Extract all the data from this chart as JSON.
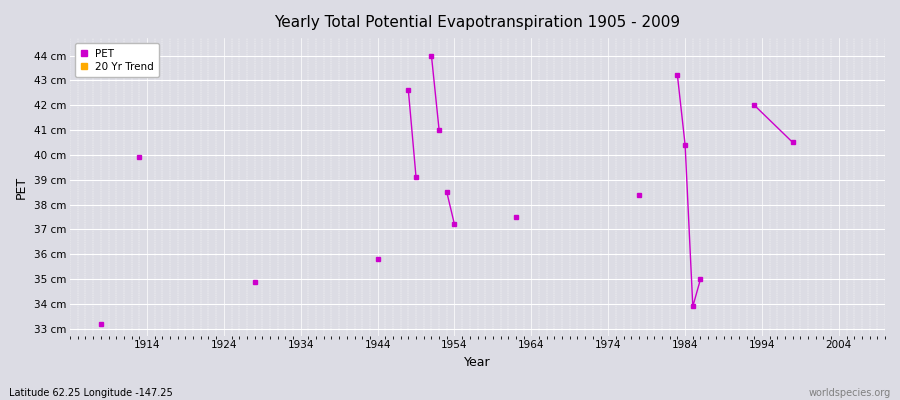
{
  "title": "Yearly Total Potential Evapotranspiration 1905 - 2009",
  "xlabel": "Year",
  "ylabel": "PET",
  "subtitle": "Latitude 62.25 Longitude -147.25",
  "watermark": "worldspecies.org",
  "xlim": [
    1904,
    2010
  ],
  "ylim": [
    32.7,
    44.7
  ],
  "ytick_vals": [
    33,
    34,
    35,
    36,
    37,
    38,
    39,
    40,
    41,
    42,
    43,
    44
  ],
  "ytick_labels": [
    "33 cm",
    "34 cm",
    "35 cm",
    "36 cm",
    "37 cm",
    "38 cm",
    "39 cm",
    "40 cm",
    "41 cm",
    "42 cm",
    "43 cm",
    "44 cm"
  ],
  "xticks": [
    1914,
    1924,
    1934,
    1944,
    1954,
    1964,
    1974,
    1984,
    1994,
    2004
  ],
  "pet_color": "#cc00cc",
  "trend_color": "#ffaa00",
  "background_color": "#dcdce4",
  "plot_background": "#dcdce4",
  "grid_color": "#ffffff",
  "isolated_points": [
    [
      1908,
      33.2
    ],
    [
      1913,
      39.9
    ],
    [
      1928,
      34.9
    ],
    [
      1944,
      35.8
    ],
    [
      1962,
      37.5
    ],
    [
      1978,
      38.4
    ]
  ],
  "connected_segments": [
    [
      [
        1948,
        42.6
      ],
      [
        1949,
        39.1
      ]
    ],
    [
      [
        1951,
        44.0
      ],
      [
        1952,
        41.0
      ]
    ],
    [
      [
        1953,
        38.5
      ],
      [
        1954,
        37.2
      ]
    ],
    [
      [
        1983,
        43.2
      ],
      [
        1984,
        40.4
      ],
      [
        1985,
        33.9
      ],
      [
        1986,
        35.0
      ]
    ],
    [
      [
        1993,
        42.0
      ],
      [
        1998,
        40.5
      ]
    ]
  ]
}
